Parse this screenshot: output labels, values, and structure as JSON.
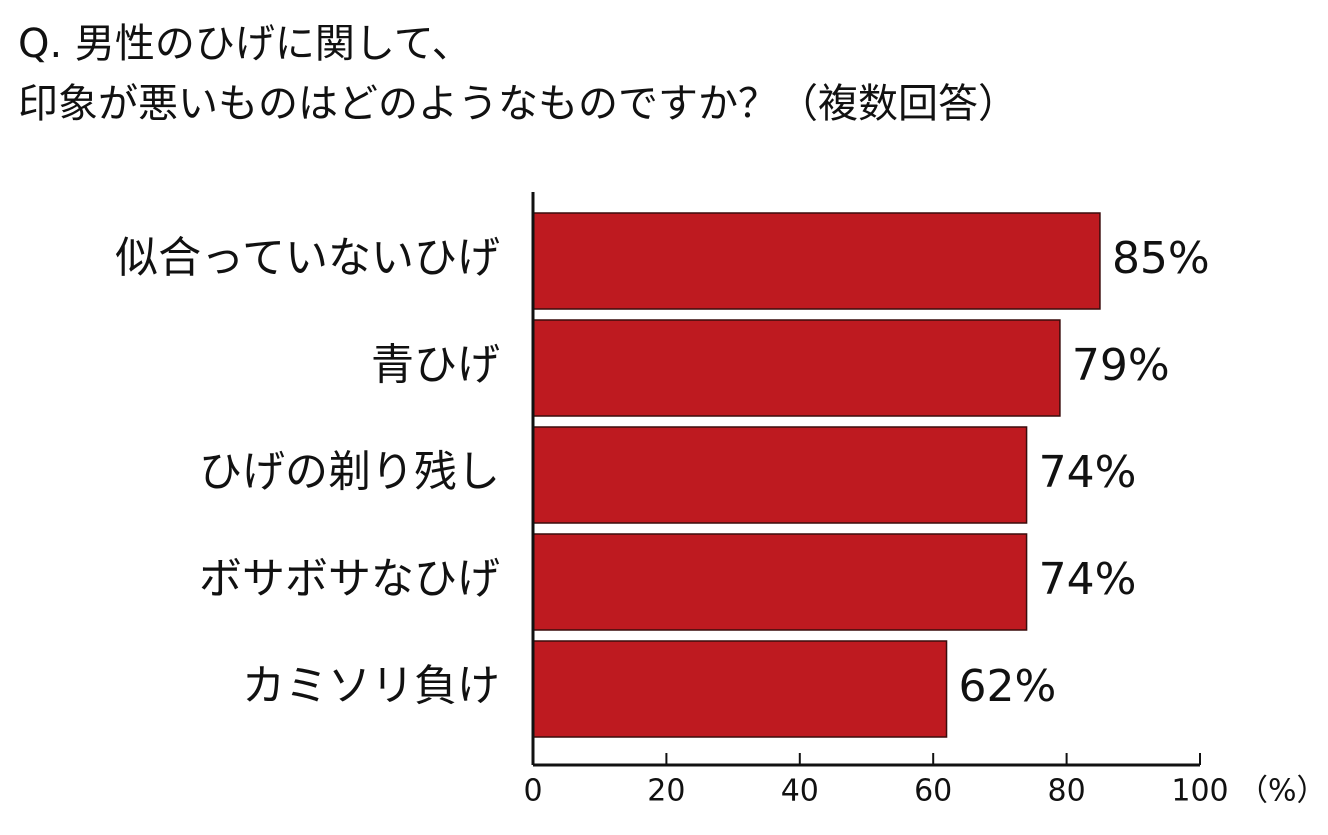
{
  "chart_data": {
    "type": "barh",
    "title": [
      "Q. 男性のひげに関して、",
      "印象が悪いものはどのようなものですか？（複数回答）"
    ],
    "categories": [
      "似合っていないひげ",
      "青ひげ",
      "ひげの剃り残し",
      "ボサボサなひげ",
      "カミソリ負け"
    ],
    "values": [
      85,
      79,
      74,
      74,
      62
    ],
    "value_labels": [
      "85%",
      "79%",
      "74%",
      "74%",
      "62%"
    ],
    "color": "#be1a20",
    "xlim": [
      0,
      100
    ],
    "xticks": [
      0,
      20,
      40,
      60,
      80,
      100
    ],
    "xlabel": "（%）"
  }
}
